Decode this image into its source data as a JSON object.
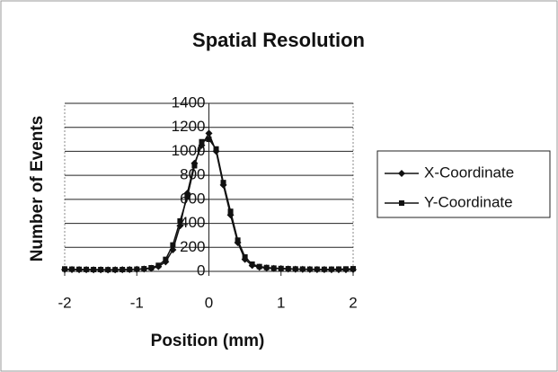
{
  "chart_data": {
    "type": "line",
    "title": "Spatial Resolution",
    "x_label": "Position (mm)",
    "y_label": "Number of Events",
    "x": [
      -2.0,
      -1.9,
      -1.8,
      -1.7,
      -1.6,
      -1.5,
      -1.4,
      -1.3,
      -1.2,
      -1.1,
      -1.0,
      -0.9,
      -0.8,
      -0.7,
      -0.6,
      -0.5,
      -0.4,
      -0.3,
      -0.2,
      -0.1,
      0.0,
      0.1,
      0.2,
      0.3,
      0.4,
      0.5,
      0.6,
      0.7,
      0.8,
      0.9,
      1.0,
      1.1,
      1.2,
      1.3,
      1.4,
      1.5,
      1.6,
      1.7,
      1.8,
      1.9,
      2.0
    ],
    "series": [
      {
        "name": "X-Coordinate",
        "color": "#111111",
        "marker": "diamond",
        "values": [
          15,
          15,
          14,
          14,
          13,
          13,
          12,
          13,
          14,
          15,
          17,
          20,
          25,
          40,
          80,
          180,
          380,
          650,
          900,
          1050,
          1150,
          1000,
          720,
          470,
          240,
          100,
          50,
          35,
          28,
          24,
          22,
          20,
          18,
          17,
          16,
          15,
          15,
          14,
          14,
          14,
          15
        ]
      },
      {
        "name": "Y-Coordinate",
        "color": "#111111",
        "marker": "square",
        "values": [
          20,
          18,
          17,
          16,
          15,
          15,
          14,
          14,
          15,
          16,
          18,
          22,
          30,
          50,
          100,
          220,
          420,
          620,
          880,
          1080,
          1100,
          1020,
          740,
          500,
          260,
          120,
          60,
          40,
          32,
          27,
          24,
          22,
          20,
          19,
          18,
          18,
          17,
          18,
          19,
          20,
          22
        ]
      }
    ],
    "xlim": [
      -2,
      2
    ],
    "xticks": [
      -2,
      -1,
      0,
      1,
      2
    ],
    "ylim": [
      0,
      1400
    ],
    "yticks": [
      0,
      200,
      400,
      600,
      800,
      1000,
      1200,
      1400
    ],
    "grid": true,
    "legend": "right"
  }
}
